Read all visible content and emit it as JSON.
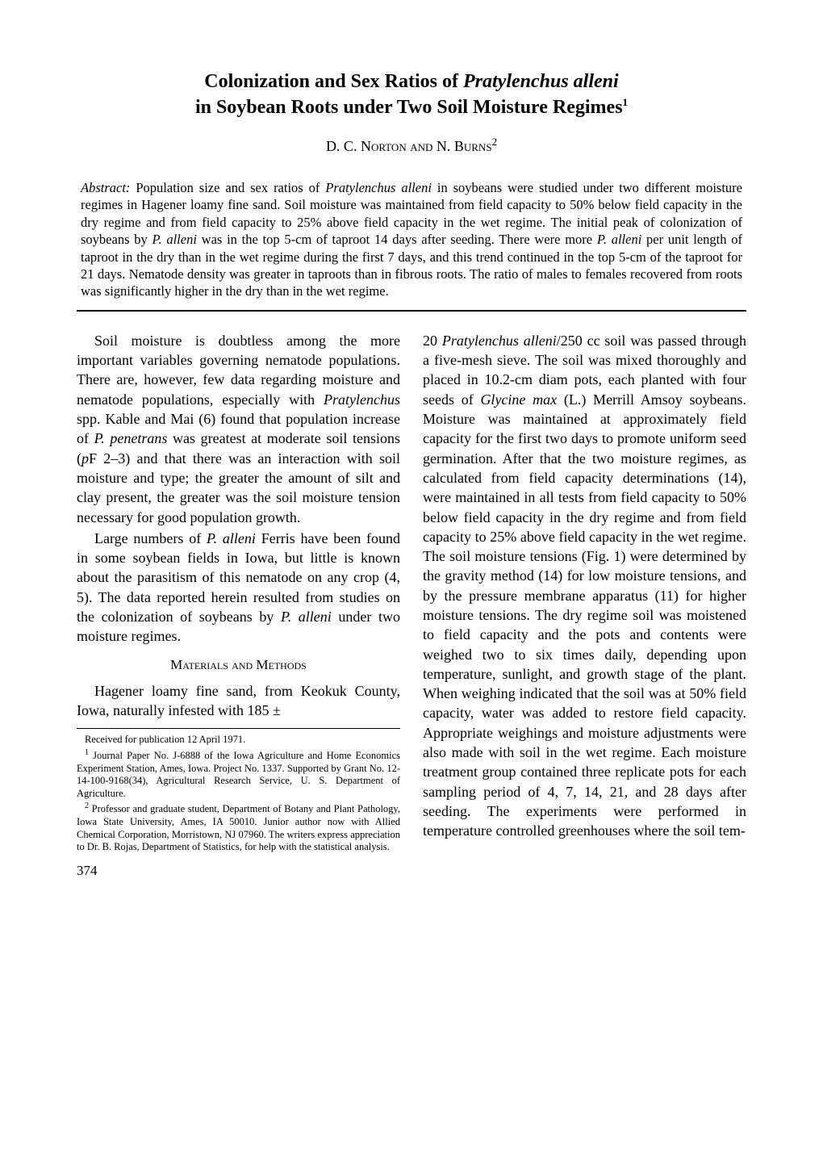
{
  "title": {
    "line1_pre": "Colonization and Sex Ratios of ",
    "line1_italic": "Pratylenchus alleni",
    "line2": "in Soybean Roots under Two Soil Moisture Regimes",
    "superscript": "1"
  },
  "authors": {
    "text": "D. C. Norton and N. Burns",
    "superscript": "2"
  },
  "abstract": {
    "label": "Abstract:",
    "text": " Population size and sex ratios of Pratylenchus alleni in soybeans were studied under two different moisture regimes in Hagener loamy fine sand. Soil moisture was maintained from field capacity to 50% below field capacity in the dry regime and from field capacity to 25% above field capacity in the wet regime. The initial peak of colonization of soybeans by P. alleni was in the top 5-cm of taproot 14 days after seeding. There were more P. alleni per unit length of taproot in the dry than in the wet regime during the first 7 days, and this trend continued in the top 5-cm of the taproot for 21 days. Nematode density was greater in taproots than in fibrous roots. The ratio of males to females recovered from roots was significantly higher in the dry than in the wet regime."
  },
  "left_column": {
    "para1": "Soil moisture is doubtless among the more important variables governing nematode populations. There are, however, few data regarding moisture and nematode populations, especially with Pratylenchus spp. Kable and Mai (6) found that population increase of P. penetrans was greatest at moderate soil tensions (pF 2–3) and that there was an interaction with soil moisture and type; the greater the amount of silt and clay present, the greater was the soil moisture tension necessary for good population growth.",
    "para2": "Large numbers of P. alleni Ferris have been found in some soybean fields in Iowa, but little is known about the parasitism of this nematode on any crop (4, 5). The data reported herein resulted from studies on the colonization of soybeans by P. alleni under two moisture regimes.",
    "section_heading": "Materials and Methods",
    "para3": "Hagener loamy fine sand, from Keokuk County, Iowa, naturally infested with 185 ±"
  },
  "right_column": {
    "para1": "20 Pratylenchus alleni/250 cc soil was passed through a five-mesh sieve. The soil was mixed thoroughly and placed in 10.2-cm diam pots, each planted with four seeds of Glycine max (L.) Merrill Amsoy soybeans. Moisture was maintained at approximately field capacity for the first two days to promote uniform seed germination. After that the two moisture regimes, as calculated from field capacity determinations (14), were maintained in all tests from field capacity to 50% below field capacity in the dry regime and from field capacity to 25% above field capacity in the wet regime. The soil moisture tensions (Fig. 1) were determined by the gravity method (14) for low moisture tensions, and by the pressure membrane apparatus (11) for higher moisture tensions. The dry regime soil was moistened to field capacity and the pots and contents were weighed two to six times daily, depending upon temperature, sunlight, and growth stage of the plant. When weighing indicated that the soil was at 50% field capacity, water was added to restore field capacity. Appropriate weighings and moisture adjustments were also made with soil in the wet regime. Each moisture treatment group contained three replicate pots for each sampling period of 4, 7, 14, 21, and 28 days after seeding. The experiments were performed in temperature controlled greenhouses where the soil tem-"
  },
  "footnotes": {
    "received": "Received for publication 12 April 1971.",
    "note1": "Journal Paper No. J-6888 of the Iowa Agriculture and Home Economics Experiment Station, Ames, Iowa. Project No. 1337. Supported by Grant No. 12-14-100-9168(34), Agricultural Research Service, U. S. Department of Agriculture.",
    "note2": "Professor and graduate student, Department of Botany and Plant Pathology, Iowa State University, Ames, IA 50010. Junior author now with Allied Chemical Corporation, Morristown, NJ 07960. The writers express appreciation to Dr. B. Rojas, Department of Statistics, for help with the statistical analysis."
  },
  "page_number": "374"
}
